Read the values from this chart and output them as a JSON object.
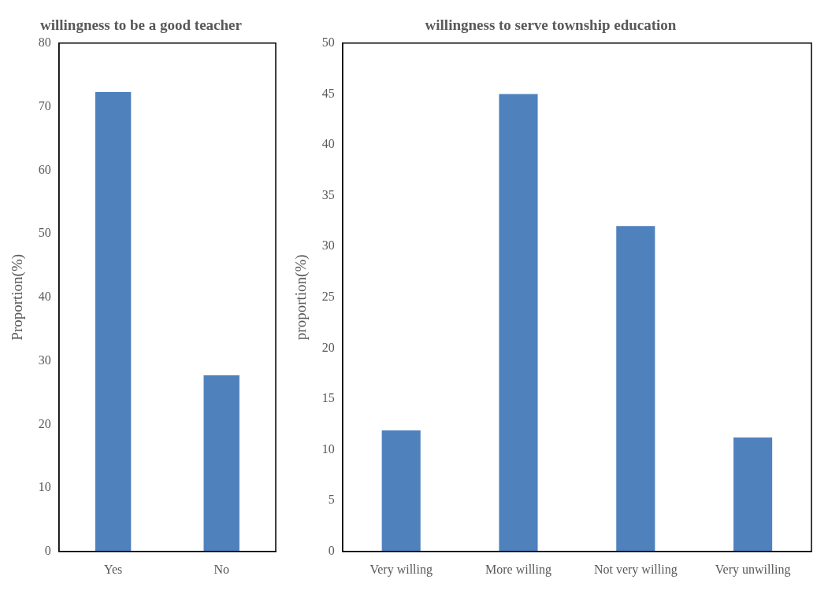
{
  "chart_data": [
    {
      "type": "bar",
      "title": "willingness to be a good teacher",
      "ylabel": "Proportion(%)",
      "categories": [
        "Yes",
        "No"
      ],
      "values": [
        72.3,
        27.7
      ],
      "color": "#4f81bd",
      "ylim": [
        0,
        80
      ],
      "yticks": [
        0,
        10,
        20,
        30,
        40,
        50,
        60,
        70,
        80
      ],
      "grid": false,
      "legend": false
    },
    {
      "type": "bar",
      "title": "willingness to serve township education",
      "ylabel": "proportion(%)",
      "categories": [
        "Very willing",
        "More willing",
        "Not very willing",
        "Very unwilling"
      ],
      "values": [
        11.9,
        45,
        32,
        11.2
      ],
      "color": "#4f81bd",
      "ylim": [
        0,
        50
      ],
      "yticks": [
        0,
        5,
        10,
        15,
        20,
        25,
        30,
        35,
        40,
        45,
        50
      ],
      "grid": false,
      "legend": false
    }
  ]
}
